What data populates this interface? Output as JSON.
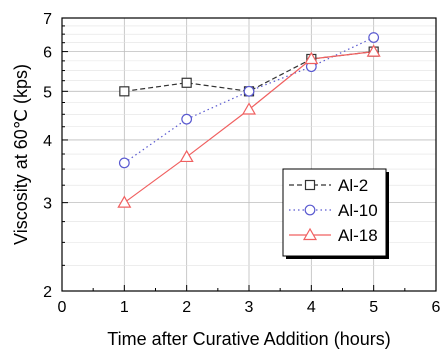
{
  "chart_data": {
    "type": "line",
    "xlabel": "Time after Curative Addition (hours)",
    "ylabel": "Viscosity at 60℃ (kps)",
    "xlim": [
      0,
      6
    ],
    "ylim": [
      2,
      7
    ],
    "yscale": "log",
    "grid": true,
    "legend_position": "center-right",
    "x_ticks": [
      "0",
      "1",
      "2",
      "3",
      "4",
      "5",
      "6"
    ],
    "y_ticks": [
      "2",
      "3",
      "4",
      "5",
      "6",
      "7"
    ],
    "series": [
      {
        "name": "Al-2",
        "marker": "square",
        "line_style": "dashed",
        "color": "#333333",
        "x": [
          1,
          2,
          3,
          4,
          5
        ],
        "y": [
          5.0,
          5.2,
          5.0,
          5.8,
          6.0
        ]
      },
      {
        "name": "Al-10",
        "marker": "circle",
        "line_style": "dotted",
        "color": "#5a5ad0",
        "x": [
          1,
          2,
          3,
          4,
          5
        ],
        "y": [
          3.6,
          4.4,
          5.0,
          5.6,
          6.4
        ]
      },
      {
        "name": "Al-18",
        "marker": "triangle",
        "line_style": "solid",
        "color": "#f06060",
        "x": [
          1,
          2,
          3,
          4,
          5
        ],
        "y": [
          3.0,
          3.7,
          4.6,
          5.8,
          6.0
        ]
      }
    ]
  }
}
